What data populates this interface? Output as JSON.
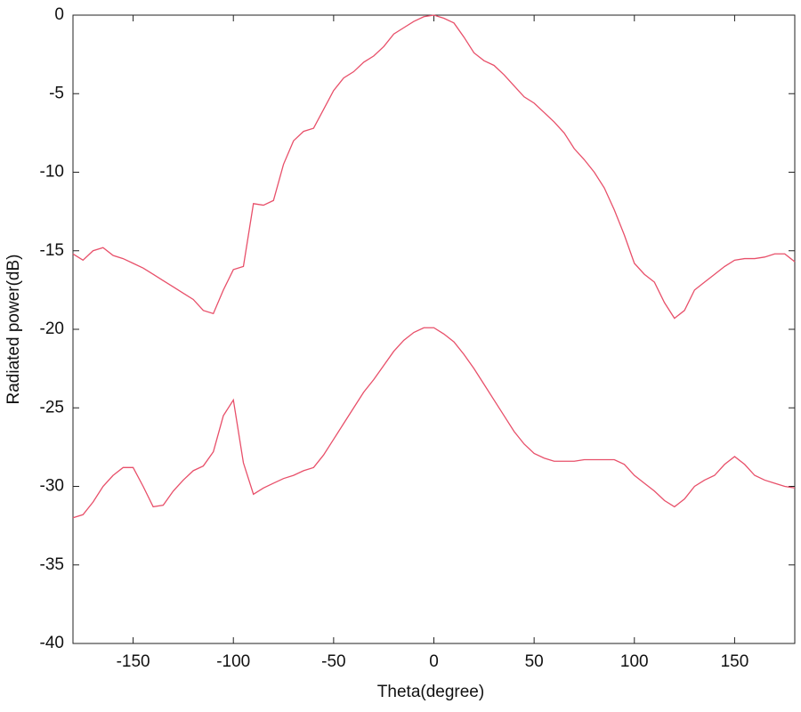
{
  "chart_data": {
    "type": "line",
    "xlabel": "Theta(degree)",
    "ylabel": "Radiated power(dB)",
    "xlim": [
      -180,
      180
    ],
    "ylim": [
      -40,
      0
    ],
    "xticks": [
      -150,
      -100,
      -50,
      0,
      50,
      100,
      150
    ],
    "yticks": [
      0,
      -5,
      -10,
      -15,
      -20,
      -25,
      -30,
      -35,
      -40
    ],
    "grid": false,
    "x": [
      -180,
      -175,
      -170,
      -165,
      -160,
      -155,
      -150,
      -145,
      -140,
      -135,
      -130,
      -125,
      -120,
      -115,
      -110,
      -105,
      -100,
      -95,
      -90,
      -85,
      -80,
      -75,
      -70,
      -65,
      -60,
      -55,
      -50,
      -45,
      -40,
      -35,
      -30,
      -25,
      -20,
      -15,
      -10,
      -5,
      0,
      5,
      10,
      15,
      20,
      25,
      30,
      35,
      40,
      45,
      50,
      55,
      60,
      65,
      70,
      75,
      80,
      85,
      90,
      95,
      100,
      105,
      110,
      115,
      120,
      125,
      130,
      135,
      140,
      145,
      150,
      155,
      160,
      165,
      170,
      175,
      180
    ],
    "series": [
      {
        "color": "#e8506a",
        "values": [
          -15.2,
          -15.6,
          -15.0,
          -14.8,
          -15.3,
          -15.5,
          -15.8,
          -16.1,
          -16.5,
          -16.9,
          -17.3,
          -17.7,
          -18.1,
          -18.8,
          -19.0,
          -17.5,
          -16.2,
          -16.0,
          -12.0,
          -12.1,
          -11.8,
          -9.5,
          -8.0,
          -7.4,
          -7.2,
          -6.0,
          -4.8,
          -4.0,
          -3.6,
          -3.0,
          -2.6,
          -2.0,
          -1.2,
          -0.8,
          -0.4,
          -0.1,
          0,
          -0.2,
          -0.5,
          -1.4,
          -2.4,
          -2.9,
          -3.2,
          -3.8,
          -4.5,
          -5.2,
          -5.6,
          -6.2,
          -6.8,
          -7.5,
          -8.5,
          -9.2,
          -10.0,
          -11.0,
          -12.4,
          -14.0,
          -15.8,
          -16.5,
          -17.0,
          -18.3,
          -19.3,
          -18.8,
          -17.5,
          -17.0,
          -16.5,
          -16.0,
          -15.6,
          -15.5,
          -15.5,
          -15.4,
          -15.2,
          -15.2,
          -15.7
        ]
      },
      {
        "color": "#e8506a",
        "values": [
          -32.0,
          -31.8,
          -31.0,
          -30.0,
          -29.3,
          -28.8,
          -28.8,
          -30.0,
          -31.3,
          -31.2,
          -30.3,
          -29.6,
          -29.0,
          -28.7,
          -27.8,
          -25.5,
          -24.5,
          -28.5,
          -30.5,
          -30.1,
          -29.8,
          -29.5,
          -29.3,
          -29.0,
          -28.8,
          -28.0,
          -27.0,
          -26.0,
          -25.0,
          -24.0,
          -23.2,
          -22.3,
          -21.4,
          -20.7,
          -20.2,
          -19.9,
          -19.9,
          -20.3,
          -20.8,
          -21.6,
          -22.5,
          -23.5,
          -24.5,
          -25.5,
          -26.5,
          -27.3,
          -27.9,
          -28.2,
          -28.4,
          -28.4,
          -28.4,
          -28.3,
          -28.3,
          -28.3,
          -28.3,
          -28.6,
          -29.3,
          -29.8,
          -30.3,
          -30.9,
          -31.3,
          -30.8,
          -30.0,
          -29.6,
          -29.3,
          -28.6,
          -28.1,
          -28.6,
          -29.3,
          -29.6,
          -29.8,
          -30.0,
          -30.1
        ]
      }
    ]
  }
}
